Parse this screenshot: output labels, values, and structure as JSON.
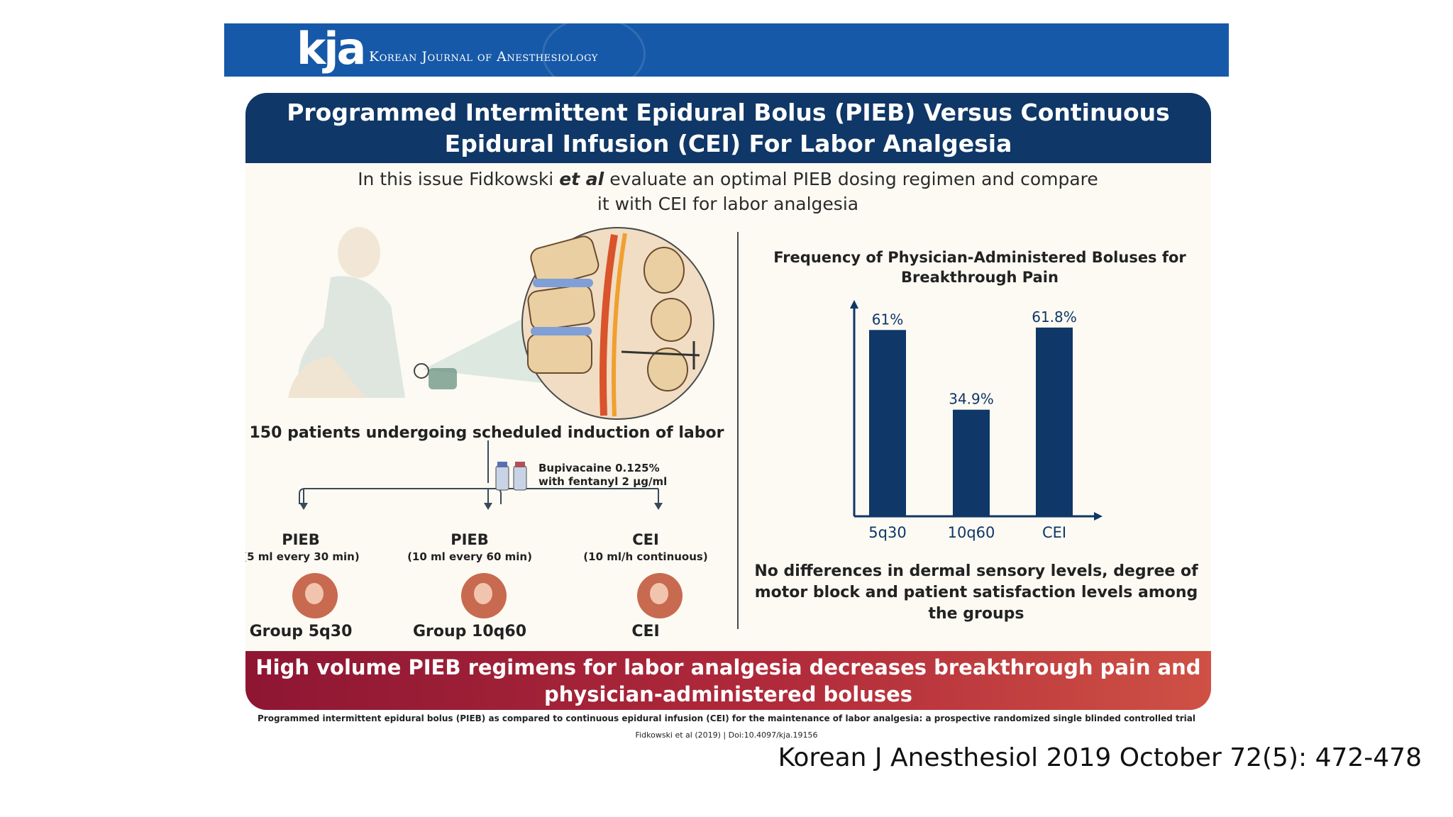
{
  "banner": {
    "logo": "kja",
    "journal_name": "Korean Journal of Anesthesiology"
  },
  "infographic": {
    "title": "Programmed Intermittent Epidural Bolus (PIEB) Versus Continuous Epidural Infusion (CEI) For Labor Analgesia",
    "subtitle_pre": "In this issue Fidkowski ",
    "subtitle_etal": "et al",
    "subtitle_post": " evaluate an optimal PIEB dosing regimen and compare it with CEI for labor analgesia",
    "patients": "150 patients undergoing scheduled induction of labor",
    "drug_line1": "Bupivacaine 0.125%",
    "drug_line2": "with fentanyl 2 μg/ml",
    "arms": [
      {
        "name": "PIEB",
        "dose": "(5 ml every 30 min)",
        "group": "Group 5q30"
      },
      {
        "name": "PIEB",
        "dose": "(10 ml every 60 min)",
        "group": "Group 10q60"
      },
      {
        "name": "CEI",
        "dose": "(10 ml/h continuous)",
        "group": "CEI"
      }
    ],
    "conclusion": "No differences in dermal sensory levels, degree of motor block and patient satisfaction levels among the groups",
    "footer": "High volume PIEB regimens for labor analgesia decreases breakthrough pain and physician-administered boluses",
    "colors": {
      "navy": "#0f3767",
      "bar": "#0f3767",
      "footer_red": "#b02a3a",
      "banner_blue": "#1659a8"
    }
  },
  "chart_data": {
    "type": "bar",
    "title": "Frequency of Physician-Administered Boluses for Breakthrough Pain",
    "categories": [
      "5q30",
      "10q60",
      "CEI"
    ],
    "values": [
      61,
      34.9,
      61.8
    ],
    "data_labels": [
      "61%",
      "34.9%",
      "61.8%"
    ],
    "ylim": [
      0,
      62
    ],
    "xlabel": "",
    "ylabel": "",
    "grid": false
  },
  "citation": {
    "article": "Programmed intermittent epidural bolus (PIEB) as compared to continuous epidural infusion (CEI) for the maintenance of labor analgesia: a prospective randomized single blinded controlled trial",
    "authors": "Fidkowski et al (2019)",
    "doi": "Doi:10.4097/kja.19156"
  },
  "journal_reference": "Korean J Anesthesiol 2019 October 72(5): 472-478"
}
